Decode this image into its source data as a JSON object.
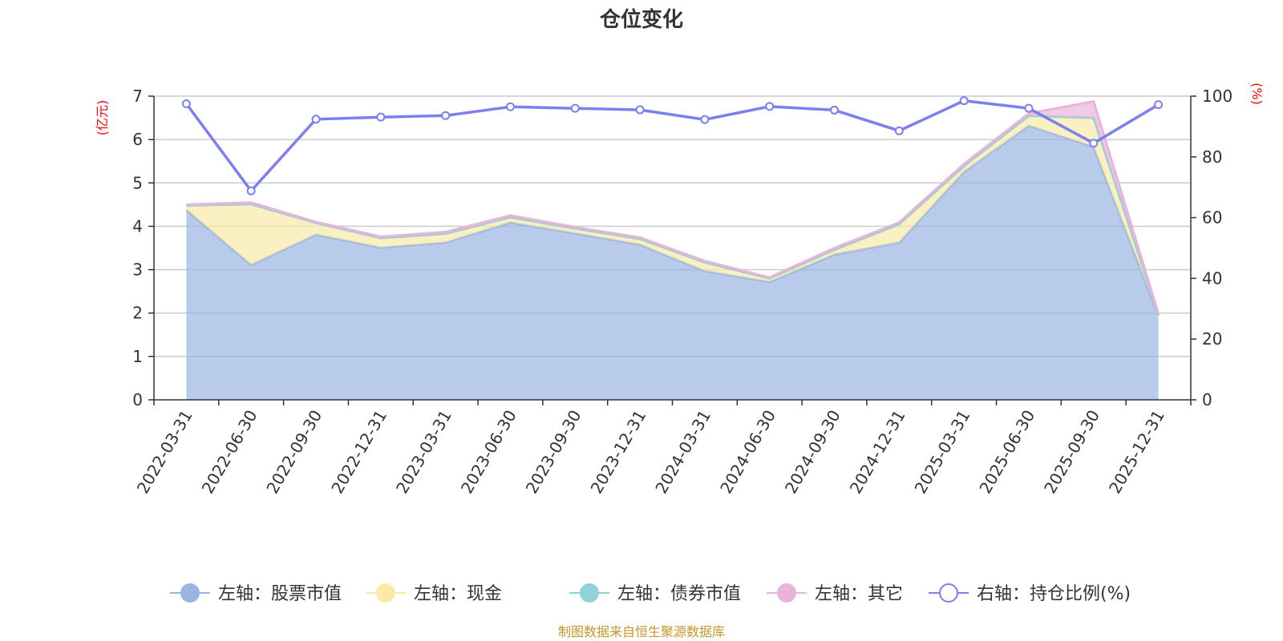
{
  "chart_data": {
    "type": "area",
    "title": "仓位变化",
    "y_left_unit": "(亿元)",
    "y_right_unit": "(%)",
    "y_left_ticks": [
      "0",
      "1",
      "2",
      "3",
      "4",
      "5",
      "6",
      "7"
    ],
    "y_right_ticks": [
      "0",
      "20",
      "40",
      "60",
      "80",
      "100"
    ],
    "ylim_left": [
      0,
      7
    ],
    "ylim_right": [
      0,
      100
    ],
    "x": [
      "2022-03-31",
      "2022-06-30",
      "2022-09-30",
      "2022-12-31",
      "2023-03-31",
      "2023-06-30",
      "2023-09-30",
      "2023-12-31",
      "2024-03-31",
      "2024-06-30",
      "2024-09-30",
      "2024-12-31",
      "2025-03-31",
      "2025-06-30",
      "2025-09-30",
      "2025-12-31"
    ],
    "stack_series": [
      {
        "name": "左轴：股票市值",
        "color": "#9ab5e1",
        "values": [
          4.38,
          3.11,
          3.81,
          3.51,
          3.63,
          4.09,
          3.84,
          3.58,
          2.97,
          2.72,
          3.35,
          3.63,
          5.26,
          6.32,
          5.83,
          1.95
        ]
      },
      {
        "name": "左轴：现金",
        "color": "#fae9a8",
        "values": [
          0.1,
          1.4,
          0.27,
          0.22,
          0.2,
          0.12,
          0.11,
          0.13,
          0.2,
          0.08,
          0.11,
          0.42,
          0.13,
          0.23,
          0.67,
          0.03
        ]
      },
      {
        "name": "左轴：债券市值",
        "color": "#8fd3d6",
        "values": [
          0,
          0,
          0,
          0,
          0,
          0,
          0,
          0,
          0,
          0,
          0,
          0,
          0,
          0,
          0,
          0
        ]
      },
      {
        "name": "左轴：其它",
        "color": "#e8b5d8",
        "values": [
          0.02,
          0.04,
          0.02,
          0.03,
          0.04,
          0.04,
          0.03,
          0.03,
          0.03,
          0.02,
          0.04,
          0.04,
          0.05,
          0.05,
          0.38,
          0.01
        ]
      }
    ],
    "line_series": {
      "name": "右轴：持仓比例(%)",
      "color": "#7b7ff0",
      "values": [
        97.5,
        68.8,
        92.4,
        93.1,
        93.6,
        96.5,
        96.0,
        95.5,
        92.3,
        96.6,
        95.4,
        88.6,
        98.5,
        96.0,
        84.5,
        97.2
      ]
    },
    "legend_position": "bottom",
    "grid": true
  },
  "footer": {
    "source": "制图数据来自恒生聚源数据库"
  }
}
